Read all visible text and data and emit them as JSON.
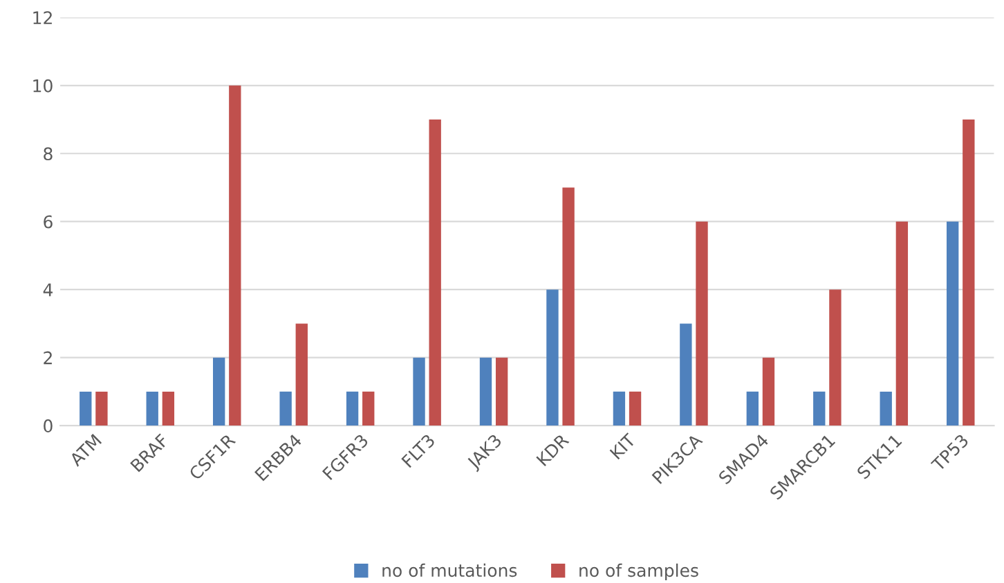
{
  "chart_data": {
    "type": "bar",
    "categories": [
      "ATM",
      "BRAF",
      "CSF1R",
      "ERBB4",
      "FGFR3",
      "FLT3",
      "JAK3",
      "KDR",
      "KIT",
      "PIK3CA",
      "SMAD4",
      "SMARCB1",
      "STK11",
      "TP53"
    ],
    "series": [
      {
        "name": "no of mutations",
        "color": "#4f81bd",
        "values": [
          1,
          1,
          2,
          1,
          1,
          2,
          2,
          4,
          1,
          3,
          1,
          1,
          1,
          6
        ]
      },
      {
        "name": "no of samples",
        "color": "#c0504d",
        "values": [
          1,
          1,
          10,
          3,
          1,
          9,
          2,
          7,
          1,
          6,
          2,
          4,
          6,
          9
        ]
      }
    ],
    "ylim": [
      0,
      12
    ],
    "yticks": [
      0,
      2,
      4,
      6,
      8,
      10,
      12
    ],
    "grid": "y",
    "legend": "bottom"
  }
}
